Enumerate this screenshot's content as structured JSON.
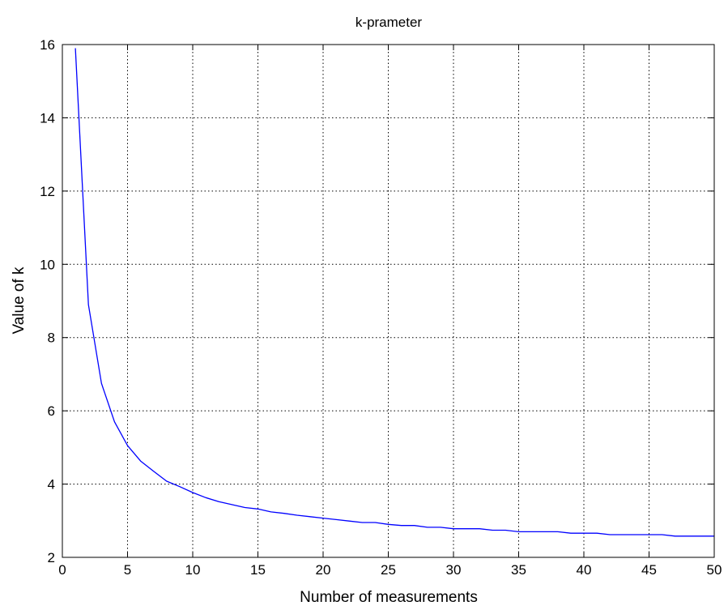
{
  "chart_data": {
    "type": "line",
    "title": "k-prameter",
    "xlabel": "Number of measurements",
    "ylabel": "Value of k",
    "xlim": [
      0,
      50
    ],
    "ylim": [
      2,
      16
    ],
    "xticks": [
      0,
      5,
      10,
      15,
      20,
      25,
      30,
      35,
      40,
      45,
      50
    ],
    "yticks": [
      2,
      4,
      6,
      8,
      10,
      12,
      14,
      16
    ],
    "grid": true,
    "grid_style": "dotted",
    "series": [
      {
        "color": "#0000ff",
        "x": [
          1,
          2,
          3,
          4,
          5,
          6,
          7,
          8,
          9,
          10,
          11,
          12,
          13,
          14,
          15,
          16,
          17,
          18,
          19,
          20,
          21,
          22,
          23,
          24,
          25,
          26,
          27,
          28,
          29,
          30,
          31,
          32,
          33,
          34,
          35,
          36,
          37,
          38,
          39,
          40,
          41,
          42,
          43,
          44,
          45,
          46,
          47,
          48,
          49,
          50
        ],
        "y": [
          15.9,
          8.9,
          6.75,
          5.7,
          5.05,
          4.63,
          4.35,
          4.08,
          3.93,
          3.77,
          3.63,
          3.52,
          3.44,
          3.36,
          3.32,
          3.24,
          3.2,
          3.15,
          3.11,
          3.07,
          3.03,
          2.99,
          2.95,
          2.95,
          2.9,
          2.87,
          2.87,
          2.82,
          2.82,
          2.78,
          2.78,
          2.78,
          2.74,
          2.74,
          2.7,
          2.7,
          2.7,
          2.7,
          2.66,
          2.66,
          2.66,
          2.62,
          2.62,
          2.62,
          2.62,
          2.62,
          2.58,
          2.58,
          2.58,
          2.58
        ]
      }
    ]
  }
}
